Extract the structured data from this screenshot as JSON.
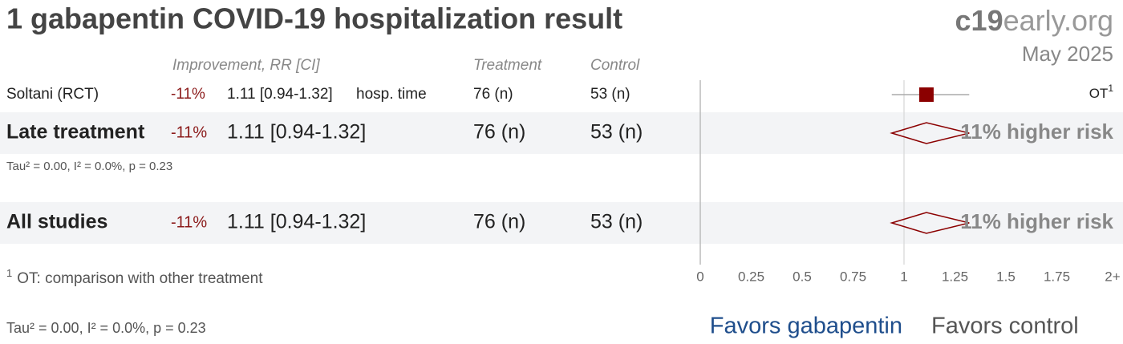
{
  "chart_data": {
    "type": "forest",
    "title": "1 gabapentin COVID-19 hospitalization result",
    "brand_bold": "c19",
    "brand_rest": "early.org",
    "date": "May 2025",
    "columns": [
      "Improvement, RR [CI]",
      "Treatment",
      "Control"
    ],
    "studies": [
      {
        "name": "Soltani (RCT)",
        "improvement": "-11%",
        "rr": 1.11,
        "ci": [
          0.94,
          1.32
        ],
        "rr_label": "1.11 [0.94-1.32]",
        "outcome": "hosp. time",
        "treatment": "76 (n)",
        "control": "53 (n)",
        "note": "OT",
        "note_ref": "1"
      }
    ],
    "groups": [
      {
        "name": "Late treatment",
        "improvement": "-11%",
        "rr": 1.11,
        "ci": [
          0.94,
          1.32
        ],
        "rr_label": "1.11 [0.94-1.32]",
        "treatment": "76 (n)",
        "control": "53 (n)",
        "result": "11% higher risk",
        "stats": "Tau² = 0.00, I² = 0.0%, p = 0.23"
      },
      {
        "name": "All studies",
        "improvement": "-11%",
        "rr": 1.11,
        "ci": [
          0.94,
          1.32
        ],
        "rr_label": "1.11 [0.94-1.32]",
        "treatment": "76 (n)",
        "control": "53 (n)",
        "result": "11% higher risk"
      }
    ],
    "footnote_ref": "1",
    "footnote": "OT: comparison with other treatment",
    "footer_stats": "Tau² = 0.00, I² = 0.0%, p = 0.23",
    "xlim": [
      0,
      2
    ],
    "xticks": [
      0,
      0.25,
      0.5,
      0.75,
      1,
      1.25,
      1.5,
      1.75,
      {
        "value": 2,
        "label": "2+"
      }
    ],
    "favors": [
      "Favors gabapentin",
      "Favors control"
    ],
    "colors": {
      "marker": "#8b0000",
      "improvement": "#8b1a1a",
      "favors_treatment": "#1f4e8c",
      "favors_control": "#555555",
      "result": "#888888"
    }
  }
}
